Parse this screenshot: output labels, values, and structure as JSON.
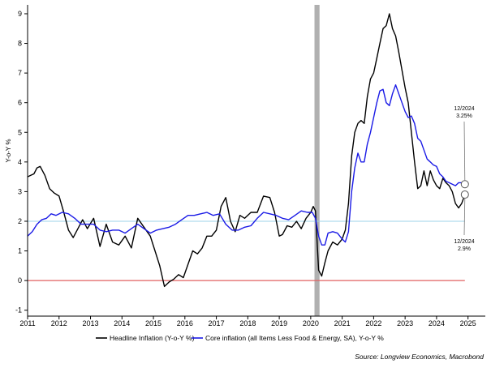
{
  "chart_data": {
    "type": "line",
    "ylabel": "Y-o-Y %",
    "ylim": [
      -1.2,
      9.3
    ],
    "yticks": [
      -1,
      0,
      1,
      2,
      3,
      4,
      5,
      6,
      7,
      8,
      9
    ],
    "xlim": [
      2011.0,
      2025.55
    ],
    "xticks": [
      2011,
      2012,
      2013,
      2014,
      2015,
      2016,
      2017,
      2018,
      2019,
      2020,
      2021,
      2022,
      2023,
      2024,
      2025
    ],
    "xtick_labels": [
      "2011",
      "2012",
      "2013",
      "2014",
      "2015",
      "2016",
      "2017",
      "2018",
      "2019",
      "2020",
      "2021",
      "2022",
      "2023",
      "2024",
      "2025"
    ],
    "grid": false,
    "legend_position": "bottom-center",
    "recession_band": {
      "start": 2020.12,
      "end": 2020.28,
      "color": "#b0b0b0"
    },
    "reference_lines": [
      {
        "y": 0,
        "color": "#e06060"
      },
      {
        "y": 2,
        "color": "#9ed3e8"
      }
    ],
    "series": [
      {
        "name": "Headline Inflation (Y-o-Y %)",
        "color": "#000000",
        "x": [
          2011.0,
          2011.1,
          2011.2,
          2011.3,
          2011.4,
          2011.55,
          2011.7,
          2011.85,
          2012.0,
          2012.15,
          2012.3,
          2012.45,
          2012.6,
          2012.75,
          2012.9,
          2013.1,
          2013.3,
          2013.5,
          2013.7,
          2013.9,
          2014.1,
          2014.3,
          2014.5,
          2014.7,
          2014.9,
          2015.05,
          2015.2,
          2015.35,
          2015.5,
          2015.65,
          2015.8,
          2015.95,
          2016.1,
          2016.25,
          2016.4,
          2016.55,
          2016.7,
          2016.85,
          2017.0,
          2017.15,
          2017.3,
          2017.45,
          2017.6,
          2017.75,
          2017.9,
          2018.1,
          2018.3,
          2018.5,
          2018.7,
          2018.85,
          2019.0,
          2019.1,
          2019.25,
          2019.4,
          2019.55,
          2019.7,
          2019.85,
          2020.0,
          2020.08,
          2020.15,
          2020.25,
          2020.35,
          2020.45,
          2020.55,
          2020.7,
          2020.85,
          2021.0,
          2021.1,
          2021.2,
          2021.3,
          2021.4,
          2021.5,
          2021.6,
          2021.7,
          2021.8,
          2021.9,
          2022.0,
          2022.1,
          2022.2,
          2022.3,
          2022.4,
          2022.5,
          2022.6,
          2022.7,
          2022.8,
          2022.9,
          2023.0,
          2023.1,
          2023.2,
          2023.3,
          2023.4,
          2023.5,
          2023.6,
          2023.7,
          2023.8,
          2023.9,
          2024.0,
          2024.1,
          2024.2,
          2024.3,
          2024.4,
          2024.5,
          2024.6,
          2024.7,
          2024.8,
          2024.9
        ],
        "values": [
          3.5,
          3.55,
          3.6,
          3.8,
          3.85,
          3.55,
          3.1,
          2.95,
          2.85,
          2.3,
          1.7,
          1.45,
          1.75,
          2.05,
          1.75,
          2.1,
          1.15,
          1.9,
          1.3,
          1.2,
          1.5,
          1.1,
          2.1,
          1.8,
          1.5,
          1.0,
          0.5,
          -0.2,
          -0.05,
          0.05,
          0.2,
          0.1,
          0.55,
          1.0,
          0.9,
          1.1,
          1.5,
          1.5,
          1.7,
          2.5,
          2.8,
          2.0,
          1.65,
          2.2,
          2.1,
          2.3,
          2.3,
          2.85,
          2.8,
          2.3,
          1.5,
          1.55,
          1.85,
          1.8,
          2.0,
          1.75,
          2.1,
          2.3,
          2.5,
          2.35,
          0.35,
          0.15,
          0.6,
          1.0,
          1.3,
          1.2,
          1.4,
          1.7,
          2.6,
          4.2,
          5.0,
          5.3,
          5.4,
          5.3,
          6.2,
          6.8,
          7.0,
          7.5,
          8.0,
          8.5,
          8.6,
          9.0,
          8.5,
          8.25,
          7.7,
          7.1,
          6.5,
          6.0,
          5.0,
          4.0,
          3.1,
          3.2,
          3.7,
          3.2,
          3.7,
          3.4,
          3.2,
          3.1,
          3.45,
          3.3,
          3.2,
          3.0,
          2.6,
          2.45,
          2.6,
          2.9
        ]
      },
      {
        "name": "Core inflation (all Items Less Food & Energy, SA), Y-o-Y %",
        "color": "#1a1ae6",
        "x": [
          2011.0,
          2011.15,
          2011.3,
          2011.45,
          2011.6,
          2011.75,
          2011.9,
          2012.1,
          2012.3,
          2012.5,
          2012.7,
          2012.9,
          2013.1,
          2013.3,
          2013.5,
          2013.7,
          2013.9,
          2014.1,
          2014.3,
          2014.5,
          2014.7,
          2014.9,
          2015.1,
          2015.3,
          2015.5,
          2015.7,
          2015.9,
          2016.1,
          2016.3,
          2016.5,
          2016.7,
          2016.9,
          2017.1,
          2017.3,
          2017.5,
          2017.7,
          2017.9,
          2018.1,
          2018.3,
          2018.5,
          2018.7,
          2018.9,
          2019.1,
          2019.3,
          2019.5,
          2019.7,
          2019.9,
          2020.05,
          2020.15,
          2020.25,
          2020.35,
          2020.45,
          2020.55,
          2020.7,
          2020.85,
          2021.0,
          2021.1,
          2021.2,
          2021.3,
          2021.4,
          2021.5,
          2021.6,
          2021.7,
          2021.8,
          2021.9,
          2022.0,
          2022.1,
          2022.2,
          2022.3,
          2022.4,
          2022.5,
          2022.6,
          2022.7,
          2022.8,
          2022.9,
          2023.0,
          2023.1,
          2023.2,
          2023.3,
          2023.4,
          2023.5,
          2023.6,
          2023.7,
          2023.8,
          2023.9,
          2024.0,
          2024.1,
          2024.2,
          2024.3,
          2024.4,
          2024.5,
          2024.6,
          2024.7,
          2024.8,
          2024.9
        ],
        "values": [
          1.5,
          1.65,
          1.9,
          2.05,
          2.1,
          2.25,
          2.2,
          2.3,
          2.25,
          2.1,
          1.9,
          1.9,
          1.9,
          1.7,
          1.65,
          1.7,
          1.7,
          1.6,
          1.75,
          1.9,
          1.75,
          1.6,
          1.7,
          1.75,
          1.8,
          1.9,
          2.05,
          2.2,
          2.2,
          2.25,
          2.3,
          2.2,
          2.25,
          1.9,
          1.7,
          1.7,
          1.8,
          1.85,
          2.1,
          2.3,
          2.25,
          2.2,
          2.1,
          2.05,
          2.2,
          2.35,
          2.3,
          2.3,
          2.1,
          1.5,
          1.2,
          1.2,
          1.6,
          1.65,
          1.6,
          1.4,
          1.3,
          1.65,
          3.0,
          3.8,
          4.3,
          4.0,
          4.0,
          4.6,
          5.0,
          5.5,
          6.0,
          6.4,
          6.45,
          6.0,
          5.9,
          6.3,
          6.6,
          6.3,
          6.0,
          5.7,
          5.5,
          5.55,
          5.3,
          4.8,
          4.7,
          4.4,
          4.1,
          4.0,
          3.9,
          3.85,
          3.6,
          3.5,
          3.35,
          3.3,
          3.25,
          3.2,
          3.3,
          3.3,
          3.25
        ]
      }
    ],
    "annotations": [
      {
        "text_lines": [
          "12/2024",
          "3.25%"
        ],
        "target": [
          2024.9,
          3.25
        ]
      },
      {
        "text_lines": [
          "12/2024",
          "2.9%"
        ],
        "target": [
          2024.9,
          2.9
        ]
      }
    ],
    "source": "Source: Longview Economics, Macrobond"
  }
}
